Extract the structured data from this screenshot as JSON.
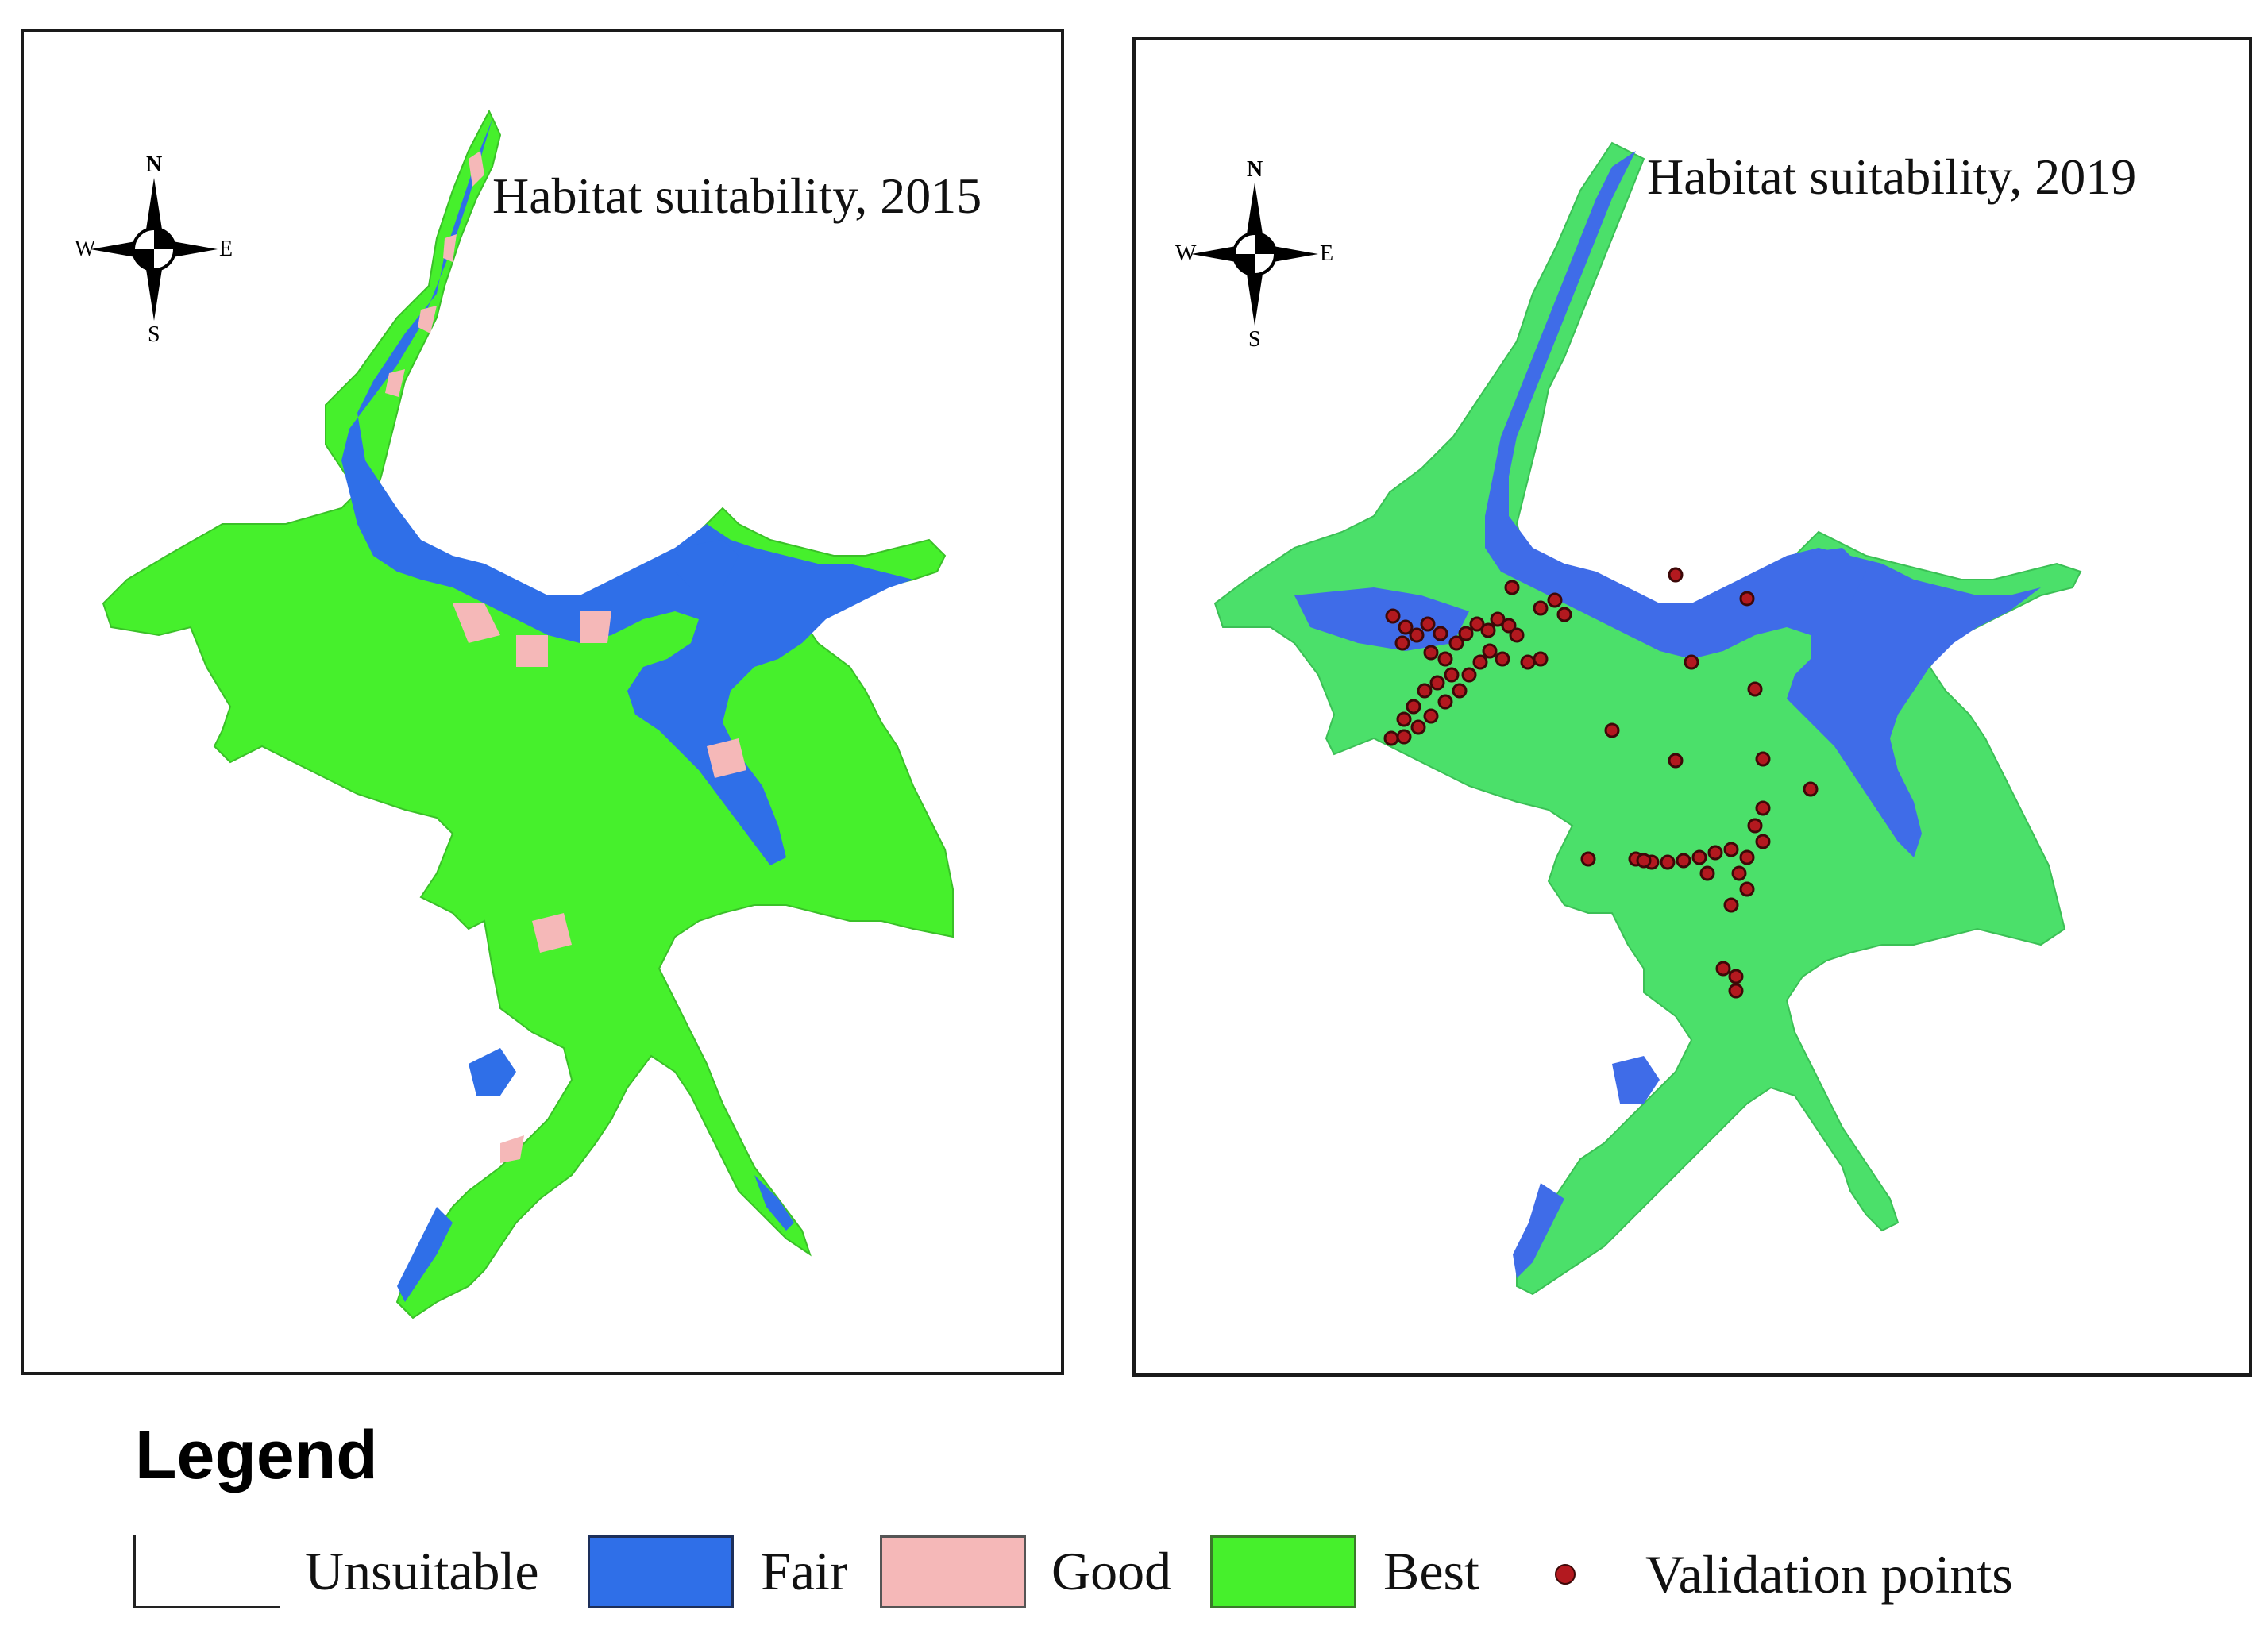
{
  "maps": [
    {
      "title": "Habitat suitability, 2015",
      "layers": [
        "Fair",
        "Good",
        "Best"
      ]
    },
    {
      "title": "Habitat suitability, 2019",
      "layers": [
        "Fair",
        "Best"
      ],
      "validation_points": true
    }
  ],
  "compass": {
    "n": "N",
    "s": "S",
    "e": "E",
    "w": "W"
  },
  "legend": {
    "title": "Legend",
    "items": [
      {
        "label": "Unsuitable",
        "color": "#ffffff"
      },
      {
        "label": "Fair",
        "color": "#2f6fe8"
      },
      {
        "label": "Good",
        "color": "#f5b8b8"
      },
      {
        "label": "Best",
        "color": "#46f02c"
      },
      {
        "label": "Validation points",
        "color": "#b3191f"
      }
    ]
  },
  "colors": {
    "fair": "#2f6fe8",
    "good": "#f5b8b8",
    "best_2015": "#46f02c",
    "best_2019": "#4be06a",
    "validation": "#b3191f"
  }
}
